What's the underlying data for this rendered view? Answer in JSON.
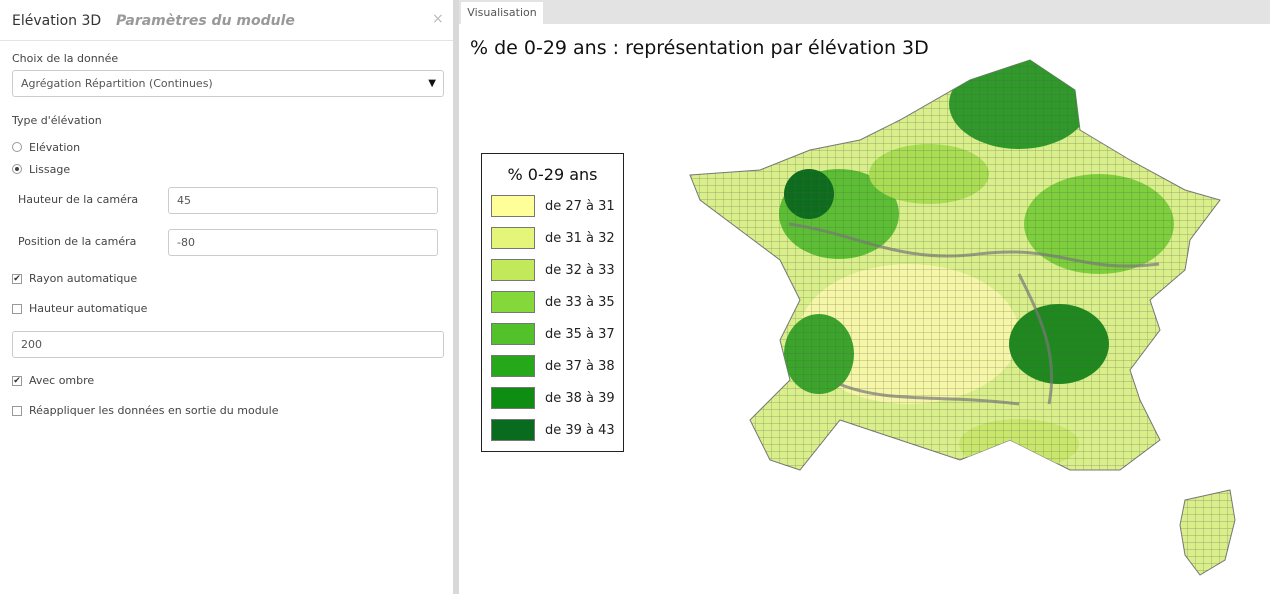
{
  "panel": {
    "title": "Elévation 3D",
    "subtitle": "Paramètres du module",
    "close": "×"
  },
  "form": {
    "data_label": "Choix de la donnée",
    "data_select": "Agrégation Répartition (Continues)",
    "elevation_type_label": "Type d'élévation",
    "radio": {
      "options": [
        "Elévation",
        "Lissage"
      ],
      "selected": 1
    },
    "camera_height_label": "Hauteur de la caméra",
    "camera_height": "45",
    "camera_position_label": "Position de la caméra",
    "camera_position": "-80",
    "checkboxes": [
      {
        "label": "Rayon automatique",
        "checked": true
      },
      {
        "label": "Hauteur automatique",
        "checked": false
      },
      {
        "label": "Avec ombre",
        "checked": true
      },
      {
        "label": "Réappliquer les données en sortie du module",
        "checked": false
      }
    ],
    "height_value": "200"
  },
  "tab": "Visualisation",
  "map": {
    "title": "% de 0-29 ans : représentation par élévation 3D",
    "legend": {
      "title": "% 0-29 ans",
      "items": [
        {
          "label": "de 27 à 31",
          "color": "#ffff99"
        },
        {
          "label": "de 31 à 32",
          "color": "#e5f57a"
        },
        {
          "label": "de 32 à 33",
          "color": "#c2e95a"
        },
        {
          "label": "de 33 à 35",
          "color": "#85d83a"
        },
        {
          "label": "de 35 à 37",
          "color": "#52c12a"
        },
        {
          "label": "de 37 à 38",
          "color": "#25a81a"
        },
        {
          "label": "de 38 à 39",
          "color": "#0f8c12"
        },
        {
          "label": "de 39 à 43",
          "color": "#086b1e"
        }
      ]
    }
  }
}
